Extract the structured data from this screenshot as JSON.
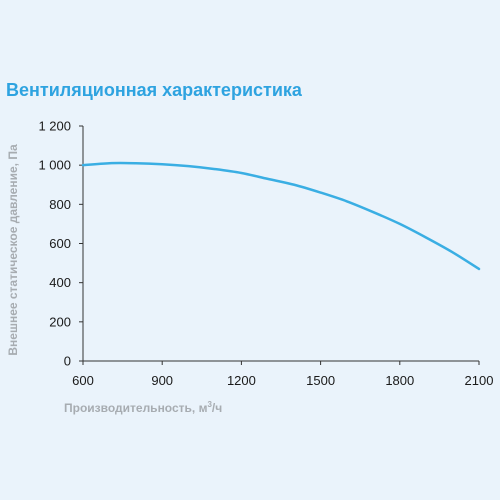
{
  "chart_data": {
    "type": "line",
    "title": "Вентиляционная характеристика",
    "xlabel_prefix": "Производительность, м",
    "xlabel_sup": "3",
    "xlabel_suffix": "/ч",
    "ylabel": "Внешнее статическое давление, Па",
    "xlim": [
      600,
      2100
    ],
    "ylim": [
      0,
      1200
    ],
    "x_ticks": [
      600,
      900,
      1200,
      1500,
      1800,
      2100
    ],
    "x_tick_labels": [
      "600",
      "900",
      "1200",
      "1500",
      "1800",
      "2100"
    ],
    "y_ticks": [
      0,
      200,
      400,
      600,
      800,
      1000,
      1200
    ],
    "y_tick_labels": [
      "0",
      "200",
      "400",
      "600",
      "800",
      "1 000",
      "1 200"
    ],
    "grid": false,
    "colors": {
      "line": "#3aaee3",
      "axis": "#333333",
      "title": "#2ea3e0",
      "axis_label": "#a7acb1"
    },
    "series": [
      {
        "x": [
          600,
          700,
          800,
          900,
          1000,
          1100,
          1200,
          1300,
          1400,
          1500,
          1600,
          1700,
          1800,
          1900,
          2000,
          2100
        ],
        "y": [
          1000,
          1010,
          1010,
          1005,
          995,
          980,
          960,
          930,
          900,
          860,
          815,
          760,
          700,
          630,
          555,
          470
        ]
      }
    ]
  }
}
